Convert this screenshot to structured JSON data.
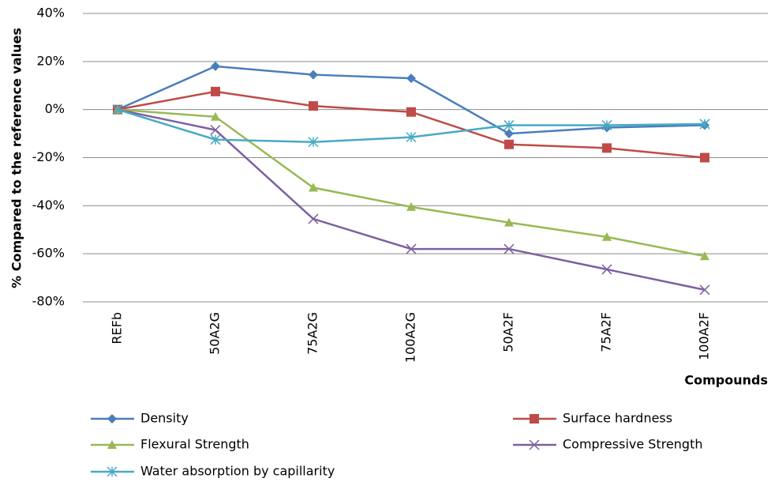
{
  "chart_data": {
    "type": "line",
    "y_label": "% Compared to the reference values",
    "x_label": "Compounds",
    "categories": [
      "REFb",
      "50A2G",
      "75A2G",
      "100A2G",
      "50A2F",
      "75A2F",
      "100A2F"
    ],
    "series": [
      {
        "name": "Density",
        "color": "#4a7ebb",
        "marker": "diamond",
        "values": [
          0,
          18,
          14.5,
          13,
          -10,
          -7.5,
          -6.5
        ]
      },
      {
        "name": "Surface hardness",
        "color": "#be4b48",
        "marker": "square",
        "values": [
          0,
          7.5,
          1.5,
          -1,
          -14.5,
          -16,
          -20
        ]
      },
      {
        "name": "Flexural Strength",
        "color": "#98b954",
        "marker": "triangle",
        "values": [
          0,
          -3,
          -32.5,
          -40.5,
          -47,
          -53,
          -61
        ]
      },
      {
        "name": "Compressive Strength",
        "color": "#7d60a0",
        "marker": "x",
        "values": [
          0,
          -8.5,
          -45.5,
          -58,
          -58,
          -66.5,
          -75
        ]
      },
      {
        "name": "Water absorption by capillarity",
        "color": "#46aac5",
        "marker": "star",
        "values": [
          0,
          -12.5,
          -13.5,
          -11.5,
          -6.5,
          -6.5,
          -6
        ]
      }
    ],
    "ylim": [
      -80,
      40
    ],
    "yticks": [
      {
        "value": -80,
        "label": "-80%"
      },
      {
        "value": -60,
        "label": "-60%"
      },
      {
        "value": -40,
        "label": "-40%"
      },
      {
        "value": -20,
        "label": "-20%"
      },
      {
        "value": 0,
        "label": "0%"
      },
      {
        "value": 20,
        "label": "20%"
      },
      {
        "value": 40,
        "label": "40%"
      }
    ],
    "grid": true
  }
}
